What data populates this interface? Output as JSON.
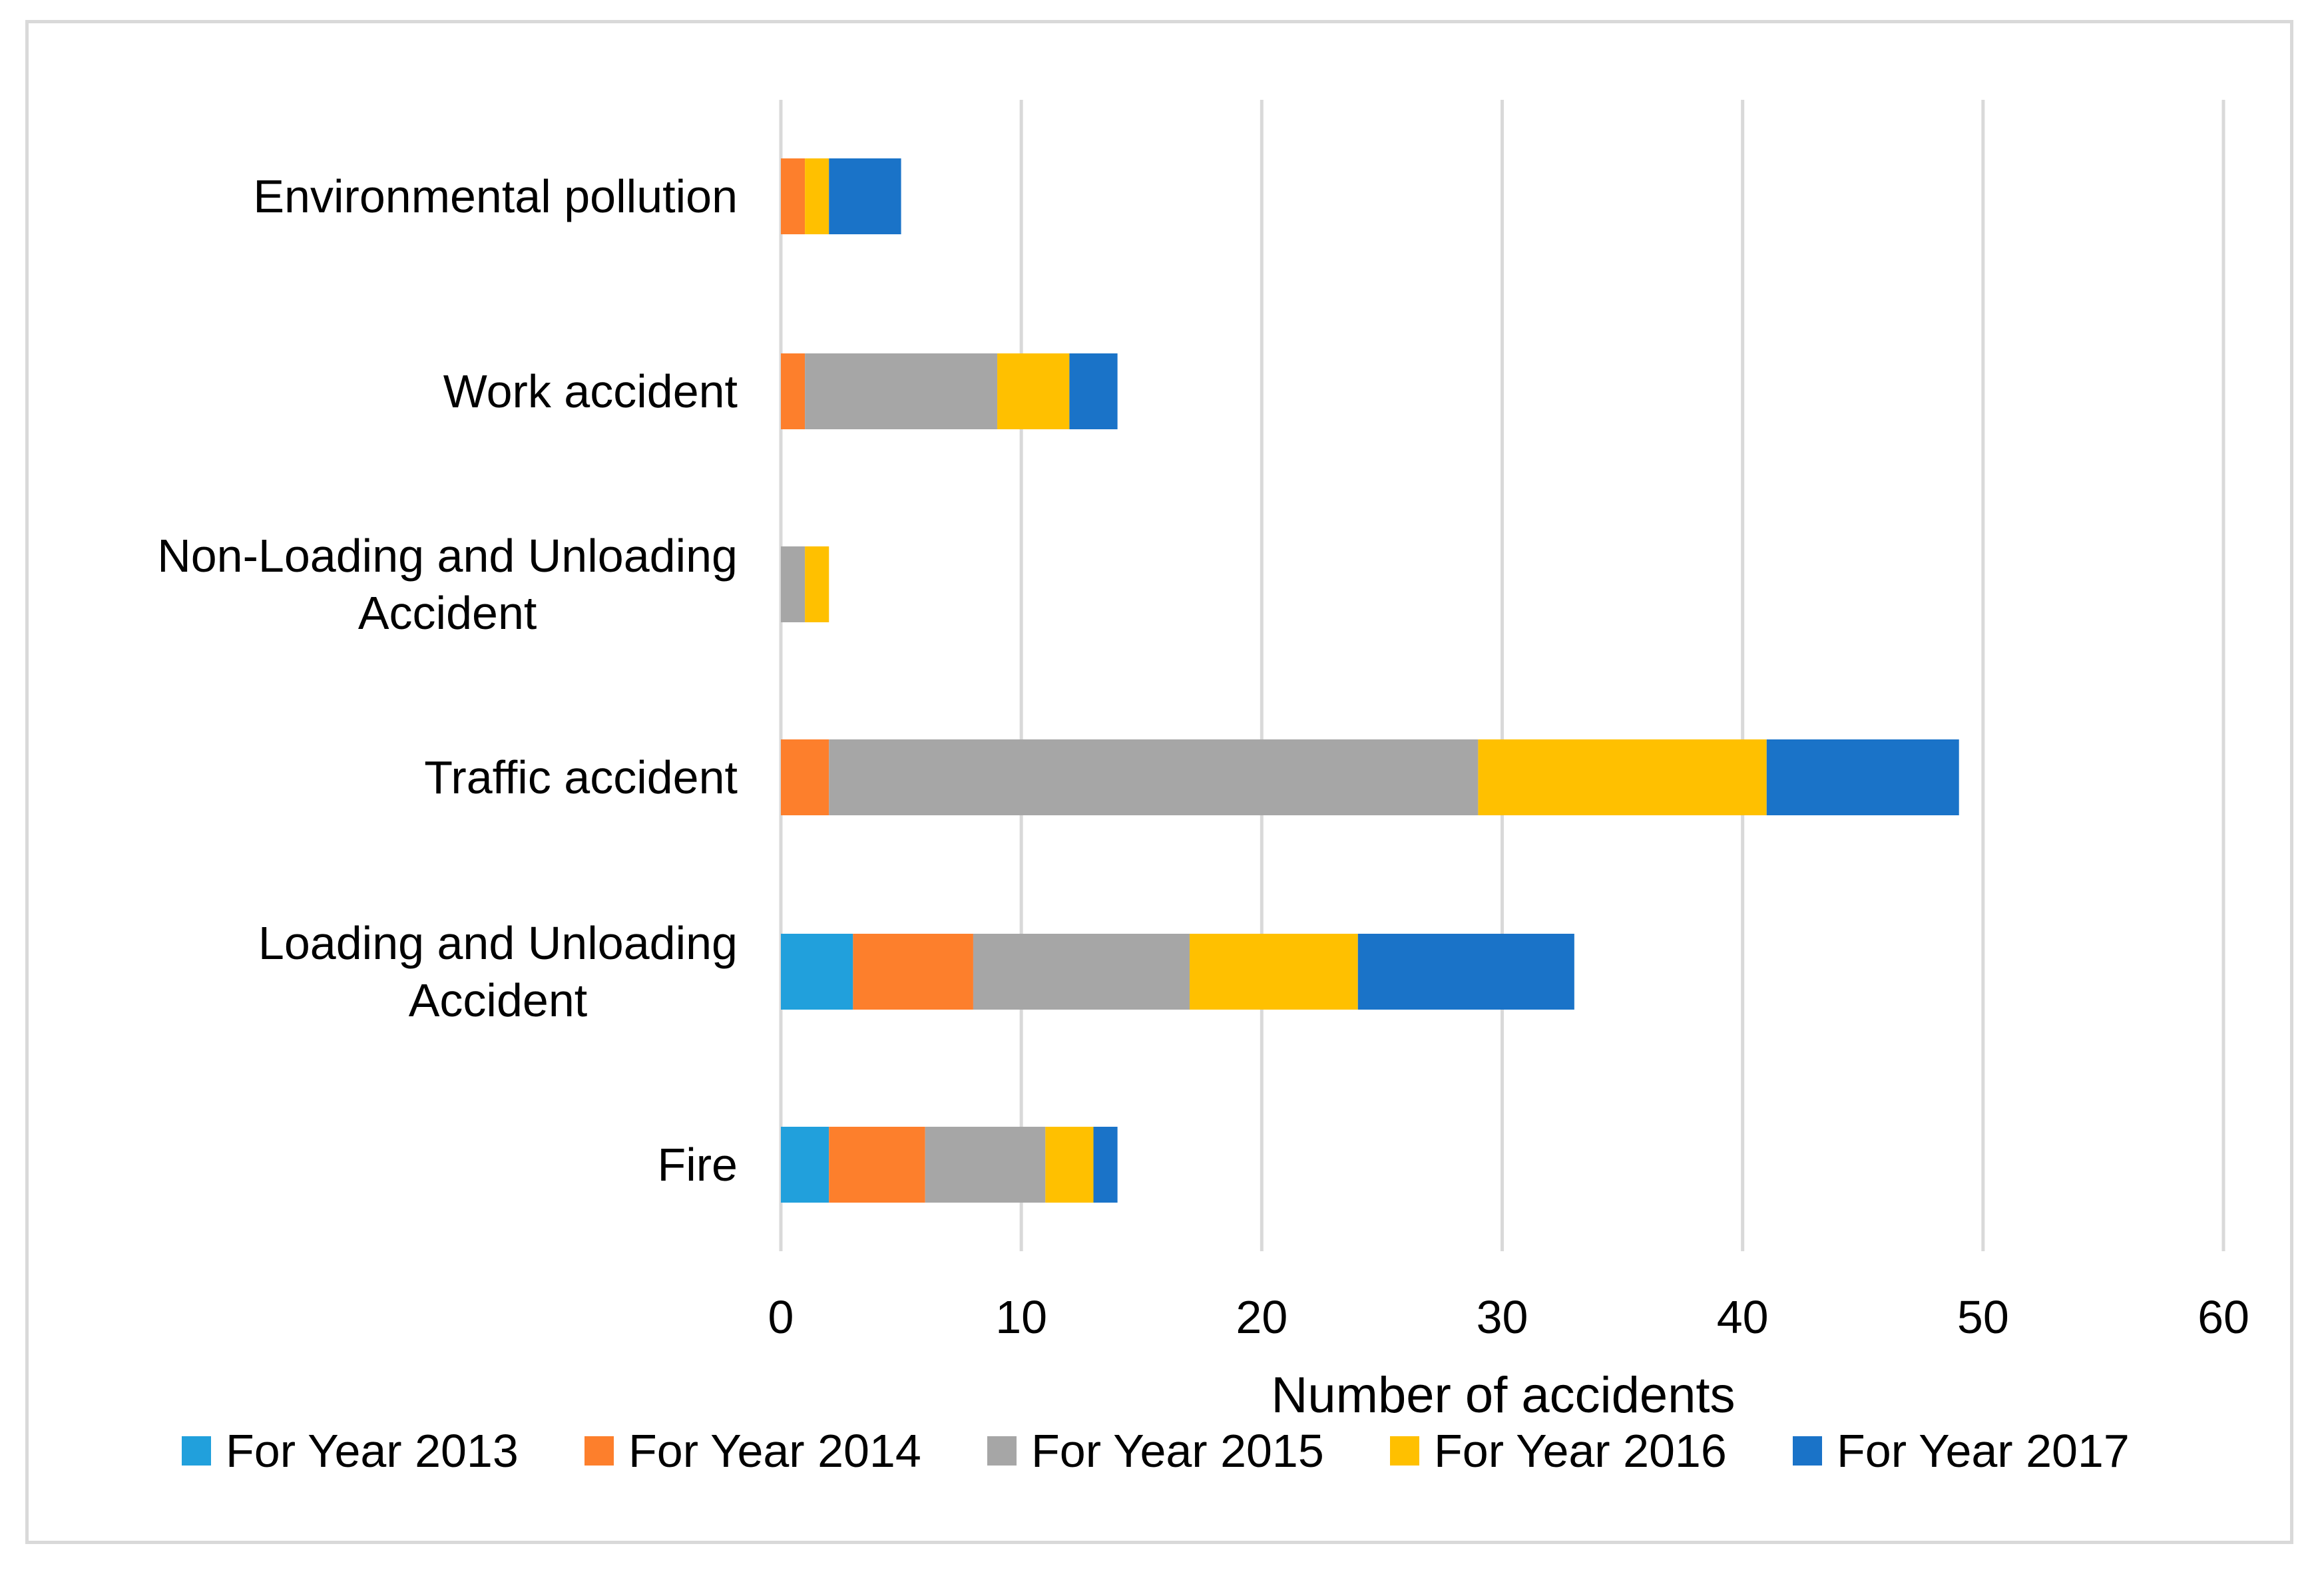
{
  "chart_data": {
    "type": "bar",
    "orientation": "horizontal",
    "stacked": true,
    "title": "",
    "xlabel": "Number of accidents",
    "ylabel": "",
    "xlim": [
      0,
      60
    ],
    "xticks": [
      "0",
      "10",
      "20",
      "30",
      "40",
      "50",
      "60"
    ],
    "grid": "vertical",
    "legend_position": "bottom",
    "categories": [
      [
        "Environmental pollution"
      ],
      [
        "Work accident"
      ],
      [
        "Non-Loading and Unloading",
        "Accident"
      ],
      [
        "Traffic accident"
      ],
      [
        "Loading and Unloading",
        "Accident"
      ],
      [
        "Fire"
      ]
    ],
    "series": [
      {
        "name": "For Year 2013",
        "color": "#21a0dc",
        "values": [
          0,
          0,
          0,
          0,
          3,
          2
        ]
      },
      {
        "name": "For Year 2014",
        "color": "#fd7f2c",
        "values": [
          1,
          1,
          0,
          2,
          5,
          4
        ]
      },
      {
        "name": "For Year 2015",
        "color": "#a6a6a6",
        "values": [
          0,
          8,
          1,
          27,
          9,
          5
        ]
      },
      {
        "name": "For Year 2016",
        "color": "#ffc000",
        "values": [
          1,
          3,
          1,
          12,
          7,
          2
        ]
      },
      {
        "name": "For Year 2017",
        "color": "#1a73c8",
        "values": [
          3,
          2,
          0,
          8,
          9,
          1
        ]
      }
    ]
  }
}
